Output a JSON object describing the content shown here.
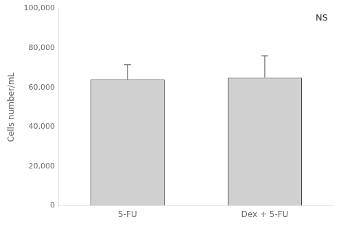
{
  "chart_data": {
    "type": "bar",
    "categories": [
      "5-FU",
      "Dex + 5-FU"
    ],
    "values": [
      64000,
      65000
    ],
    "errors_up": [
      7500,
      11000
    ],
    "color": "#d0d0d0",
    "ylabel": "Cells number/mL",
    "annotation": "NS",
    "ylim": [
      0,
      100000
    ],
    "yticks": [
      0,
      {
        "value": 20000,
        "label": "20,000"
      },
      {
        "value": 40000,
        "label": "40,000"
      },
      {
        "value": 60000,
        "label": "60,000"
      },
      {
        "value": 80000,
        "label": "80,000"
      },
      {
        "value": 100000,
        "label": "100,000"
      }
    ],
    "grid": false
  }
}
